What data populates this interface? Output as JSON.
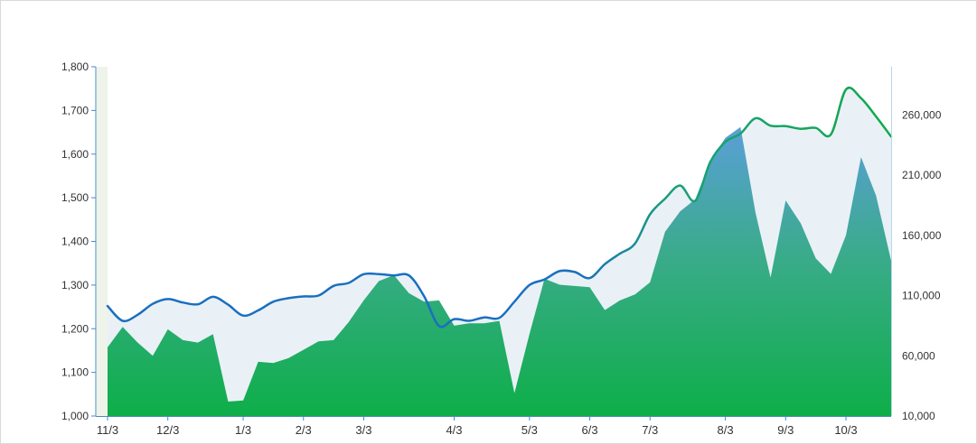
{
  "chart_data": {
    "type": "area",
    "title": "",
    "x": [
      "11/3",
      "11/10",
      "11/17",
      "11/24",
      "12/3",
      "12/10",
      "12/17",
      "12/24",
      "12/31",
      "1/3",
      "1/10",
      "1/17",
      "1/24",
      "2/3",
      "2/10",
      "2/17",
      "2/24",
      "3/3",
      "3/10",
      "3/17",
      "3/24",
      "3/27",
      "3/31",
      "4/3",
      "4/10",
      "4/17",
      "4/24",
      "4/29",
      "5/3",
      "5/10",
      "5/17",
      "5/24",
      "6/3",
      "6/10",
      "6/17",
      "6/24",
      "7/3",
      "7/10",
      "7/17",
      "7/24",
      "7/28",
      "8/3",
      "8/10",
      "8/17",
      "8/24",
      "9/3",
      "9/10",
      "9/17",
      "9/24",
      "10/3",
      "10/10",
      "10/17",
      "10/24"
    ],
    "x_tick_labels": [
      "11/3",
      "12/3",
      "1/3",
      "2/3",
      "3/3",
      "4/3",
      "5/3",
      "6/3",
      "7/3",
      "8/3",
      "9/3",
      "10/3"
    ],
    "y_left": {
      "ticks": [
        "1,000",
        "1,100",
        "1,200",
        "1,300",
        "1,400",
        "1,500",
        "1,600",
        "1,700",
        "1,800"
      ],
      "ylim": [
        1000,
        1800
      ]
    },
    "y_right": {
      "ticks": [
        "10,000",
        "60,000",
        "110,000",
        "160,000",
        "210,000",
        "260,000"
      ],
      "ylim": [
        10000,
        300000
      ]
    },
    "series": [
      {
        "axis": "left",
        "style": "line with light band fill",
        "values": [
          1252,
          1218,
          1232,
          1257,
          1268,
          1260,
          1256,
          1273,
          1255,
          1230,
          1242,
          1262,
          1270,
          1274,
          1276,
          1298,
          1305,
          1325,
          1325,
          1322,
          1322,
          1275,
          1206,
          1222,
          1218,
          1226,
          1225,
          1262,
          1300,
          1313,
          1332,
          1330,
          1316,
          1348,
          1372,
          1395,
          1462,
          1498,
          1528,
          1493,
          1582,
          1628,
          1647,
          1682,
          1665,
          1664,
          1658,
          1660,
          1645,
          1748,
          1728,
          1686,
          1640
        ]
      },
      {
        "axis": "right",
        "style": "area",
        "values": [
          67000,
          84000,
          71000,
          60000,
          82000,
          73000,
          71000,
          78000,
          22000,
          23000,
          55000,
          54000,
          58000,
          65000,
          72000,
          73000,
          88000,
          106000,
          122000,
          127000,
          112000,
          105000,
          106000,
          85000,
          87000,
          87000,
          89000,
          29000,
          78000,
          124000,
          119000,
          118000,
          117000,
          98000,
          106000,
          111000,
          121000,
          163000,
          180000,
          190000,
          222000,
          241000,
          250000,
          179000,
          125000,
          189000,
          170000,
          141000,
          128000,
          160000,
          225000,
          193000,
          139000
        ]
      }
    ],
    "colors": {
      "line_start": "#1a6fbf",
      "line_end": "#13a84a",
      "area_top": "#5a9fd8",
      "area_bottom": "#0eae49",
      "band": "#e9f1f6",
      "axis": "#4a8ac4",
      "right_axis": "#b9d7ec"
    },
    "grid": false,
    "legend": "none"
  }
}
